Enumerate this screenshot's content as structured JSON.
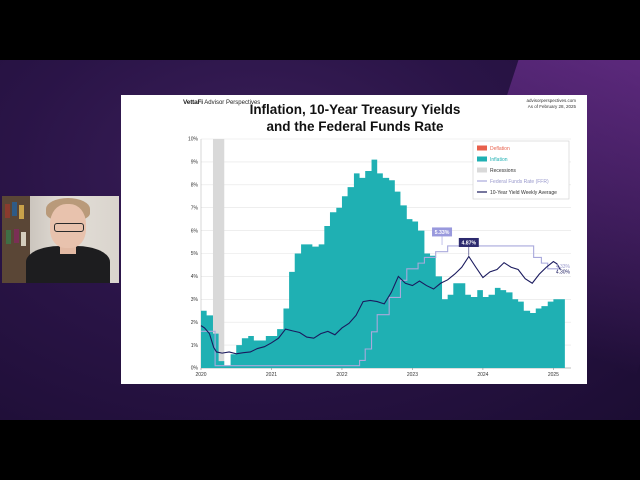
{
  "slide": {
    "brand_main": "VettaFi",
    "brand_sub": "Advisor Perspectives",
    "title_line1": "Inflation, 10-Year Treasury Yields",
    "title_line2": "and the Federal Funds Rate",
    "source_line1": "advisorperspectives.com",
    "source_line2": "As of February 28, 2025"
  },
  "colors": {
    "inflation": "#1fb0b3",
    "deflation": "#e8604c",
    "recession": "#d9d9d9",
    "fed_funds": "#a9a9dc",
    "ten_year": "#1a1a5e",
    "callout_fed": "#9999dd",
    "callout_10y": "#2c2a6e"
  },
  "chart_data": {
    "type": "area",
    "ylim": [
      0,
      10
    ],
    "xlim": [
      2020.0,
      2025.25
    ],
    "y_ticks": [
      "0%",
      "1%",
      "2%",
      "3%",
      "4%",
      "5%",
      "6%",
      "7%",
      "8%",
      "9%",
      "10%"
    ],
    "x_ticks": [
      {
        "label": "2020",
        "x": 2020.0
      },
      {
        "label": "2021",
        "x": 2021.0
      },
      {
        "label": "2022",
        "x": 2022.0
      },
      {
        "label": "2023",
        "x": 2023.0
      },
      {
        "label": "2024",
        "x": 2024.0
      },
      {
        "label": "2025",
        "x": 2025.0
      }
    ],
    "legend": [
      {
        "key": "deflation",
        "label": "Deflation"
      },
      {
        "key": "inflation",
        "label": "Inflation"
      },
      {
        "key": "recession",
        "label": "Recessions"
      },
      {
        "key": "fed_funds",
        "label": "Federal Funds Rate (FFR)"
      },
      {
        "key": "ten_year",
        "label": "10-Year Yield Weekly Average"
      }
    ],
    "recession": [
      2020.17,
      2020.33
    ],
    "series": [
      {
        "key": "inflation",
        "values": [
          [
            2020.0,
            2.5
          ],
          [
            2020.08,
            2.3
          ],
          [
            2020.17,
            1.5
          ],
          [
            2020.25,
            0.3
          ],
          [
            2020.33,
            0.1
          ],
          [
            2020.42,
            0.6
          ],
          [
            2020.5,
            1.0
          ],
          [
            2020.58,
            1.3
          ],
          [
            2020.67,
            1.4
          ],
          [
            2020.75,
            1.2
          ],
          [
            2020.83,
            1.2
          ],
          [
            2020.92,
            1.4
          ],
          [
            2021.0,
            1.4
          ],
          [
            2021.08,
            1.7
          ],
          [
            2021.17,
            2.6
          ],
          [
            2021.25,
            4.2
          ],
          [
            2021.33,
            5.0
          ],
          [
            2021.42,
            5.4
          ],
          [
            2021.5,
            5.4
          ],
          [
            2021.58,
            5.3
          ],
          [
            2021.67,
            5.4
          ],
          [
            2021.75,
            6.2
          ],
          [
            2021.83,
            6.8
          ],
          [
            2021.92,
            7.0
          ],
          [
            2022.0,
            7.5
          ],
          [
            2022.08,
            7.9
          ],
          [
            2022.17,
            8.5
          ],
          [
            2022.25,
            8.3
          ],
          [
            2022.33,
            8.6
          ],
          [
            2022.42,
            9.1
          ],
          [
            2022.5,
            8.5
          ],
          [
            2022.58,
            8.3
          ],
          [
            2022.67,
            8.2
          ],
          [
            2022.75,
            7.7
          ],
          [
            2022.83,
            7.1
          ],
          [
            2022.92,
            6.5
          ],
          [
            2023.0,
            6.4
          ],
          [
            2023.08,
            6.0
          ],
          [
            2023.17,
            5.0
          ],
          [
            2023.25,
            4.9
          ],
          [
            2023.33,
            4.0
          ],
          [
            2023.42,
            3.0
          ],
          [
            2023.5,
            3.2
          ],
          [
            2023.58,
            3.7
          ],
          [
            2023.67,
            3.7
          ],
          [
            2023.75,
            3.2
          ],
          [
            2023.83,
            3.1
          ],
          [
            2023.92,
            3.4
          ],
          [
            2024.0,
            3.1
          ],
          [
            2024.08,
            3.2
          ],
          [
            2024.17,
            3.5
          ],
          [
            2024.25,
            3.4
          ],
          [
            2024.33,
            3.3
          ],
          [
            2024.42,
            3.0
          ],
          [
            2024.5,
            2.9
          ],
          [
            2024.58,
            2.5
          ],
          [
            2024.67,
            2.4
          ],
          [
            2024.75,
            2.6
          ],
          [
            2024.83,
            2.7
          ],
          [
            2024.92,
            2.9
          ],
          [
            2025.0,
            3.0
          ],
          [
            2025.08,
            3.0
          ]
        ]
      },
      {
        "key": "fed_funds",
        "values": [
          [
            2020.0,
            1.6
          ],
          [
            2020.17,
            1.6
          ],
          [
            2020.2,
            0.1
          ],
          [
            2022.2,
            0.1
          ],
          [
            2022.25,
            0.33
          ],
          [
            2022.33,
            0.83
          ],
          [
            2022.42,
            1.58
          ],
          [
            2022.5,
            2.33
          ],
          [
            2022.67,
            3.08
          ],
          [
            2022.83,
            3.83
          ],
          [
            2022.92,
            4.33
          ],
          [
            2023.08,
            4.58
          ],
          [
            2023.17,
            4.83
          ],
          [
            2023.33,
            5.08
          ],
          [
            2023.5,
            5.33
          ],
          [
            2024.67,
            5.33
          ],
          [
            2024.72,
            4.83
          ],
          [
            2024.83,
            4.58
          ],
          [
            2024.92,
            4.33
          ],
          [
            2025.1,
            4.33
          ]
        ]
      },
      {
        "key": "ten_year",
        "values": [
          [
            2020.0,
            1.85
          ],
          [
            2020.05,
            1.75
          ],
          [
            2020.12,
            1.5
          ],
          [
            2020.18,
            0.9
          ],
          [
            2020.22,
            0.7
          ],
          [
            2020.3,
            0.65
          ],
          [
            2020.4,
            0.7
          ],
          [
            2020.5,
            0.62
          ],
          [
            2020.6,
            0.67
          ],
          [
            2020.7,
            0.7
          ],
          [
            2020.8,
            0.85
          ],
          [
            2020.9,
            0.93
          ],
          [
            2021.0,
            1.1
          ],
          [
            2021.1,
            1.3
          ],
          [
            2021.2,
            1.7
          ],
          [
            2021.3,
            1.62
          ],
          [
            2021.4,
            1.55
          ],
          [
            2021.5,
            1.35
          ],
          [
            2021.6,
            1.3
          ],
          [
            2021.7,
            1.5
          ],
          [
            2021.8,
            1.6
          ],
          [
            2021.9,
            1.45
          ],
          [
            2022.0,
            1.75
          ],
          [
            2022.1,
            1.95
          ],
          [
            2022.2,
            2.3
          ],
          [
            2022.3,
            2.9
          ],
          [
            2022.4,
            2.95
          ],
          [
            2022.5,
            2.9
          ],
          [
            2022.6,
            2.8
          ],
          [
            2022.7,
            3.3
          ],
          [
            2022.8,
            4.0
          ],
          [
            2022.9,
            3.7
          ],
          [
            2023.0,
            3.6
          ],
          [
            2023.1,
            3.8
          ],
          [
            2023.2,
            3.6
          ],
          [
            2023.3,
            3.45
          ],
          [
            2023.4,
            3.7
          ],
          [
            2023.5,
            3.85
          ],
          [
            2023.6,
            4.1
          ],
          [
            2023.7,
            4.4
          ],
          [
            2023.8,
            4.87
          ],
          [
            2023.9,
            4.4
          ],
          [
            2024.0,
            3.95
          ],
          [
            2024.1,
            4.2
          ],
          [
            2024.2,
            4.3
          ],
          [
            2024.3,
            4.6
          ],
          [
            2024.4,
            4.4
          ],
          [
            2024.5,
            4.3
          ],
          [
            2024.6,
            3.9
          ],
          [
            2024.7,
            3.7
          ],
          [
            2024.8,
            4.1
          ],
          [
            2024.9,
            4.4
          ],
          [
            2025.0,
            4.65
          ],
          [
            2025.05,
            4.55
          ],
          [
            2025.1,
            4.3
          ]
        ]
      }
    ],
    "callouts": [
      {
        "key": "fed_funds",
        "label": "5.33%",
        "x": 2023.42,
        "y": 5.33
      },
      {
        "key": "ten_year",
        "label": "4.87%",
        "x": 2023.8,
        "y": 4.87
      }
    ],
    "end_labels": [
      {
        "key": "fed_funds",
        "label": "4.33%",
        "y": 4.33
      },
      {
        "key": "ten_year",
        "label": "4.30%",
        "y": 4.3
      }
    ]
  }
}
